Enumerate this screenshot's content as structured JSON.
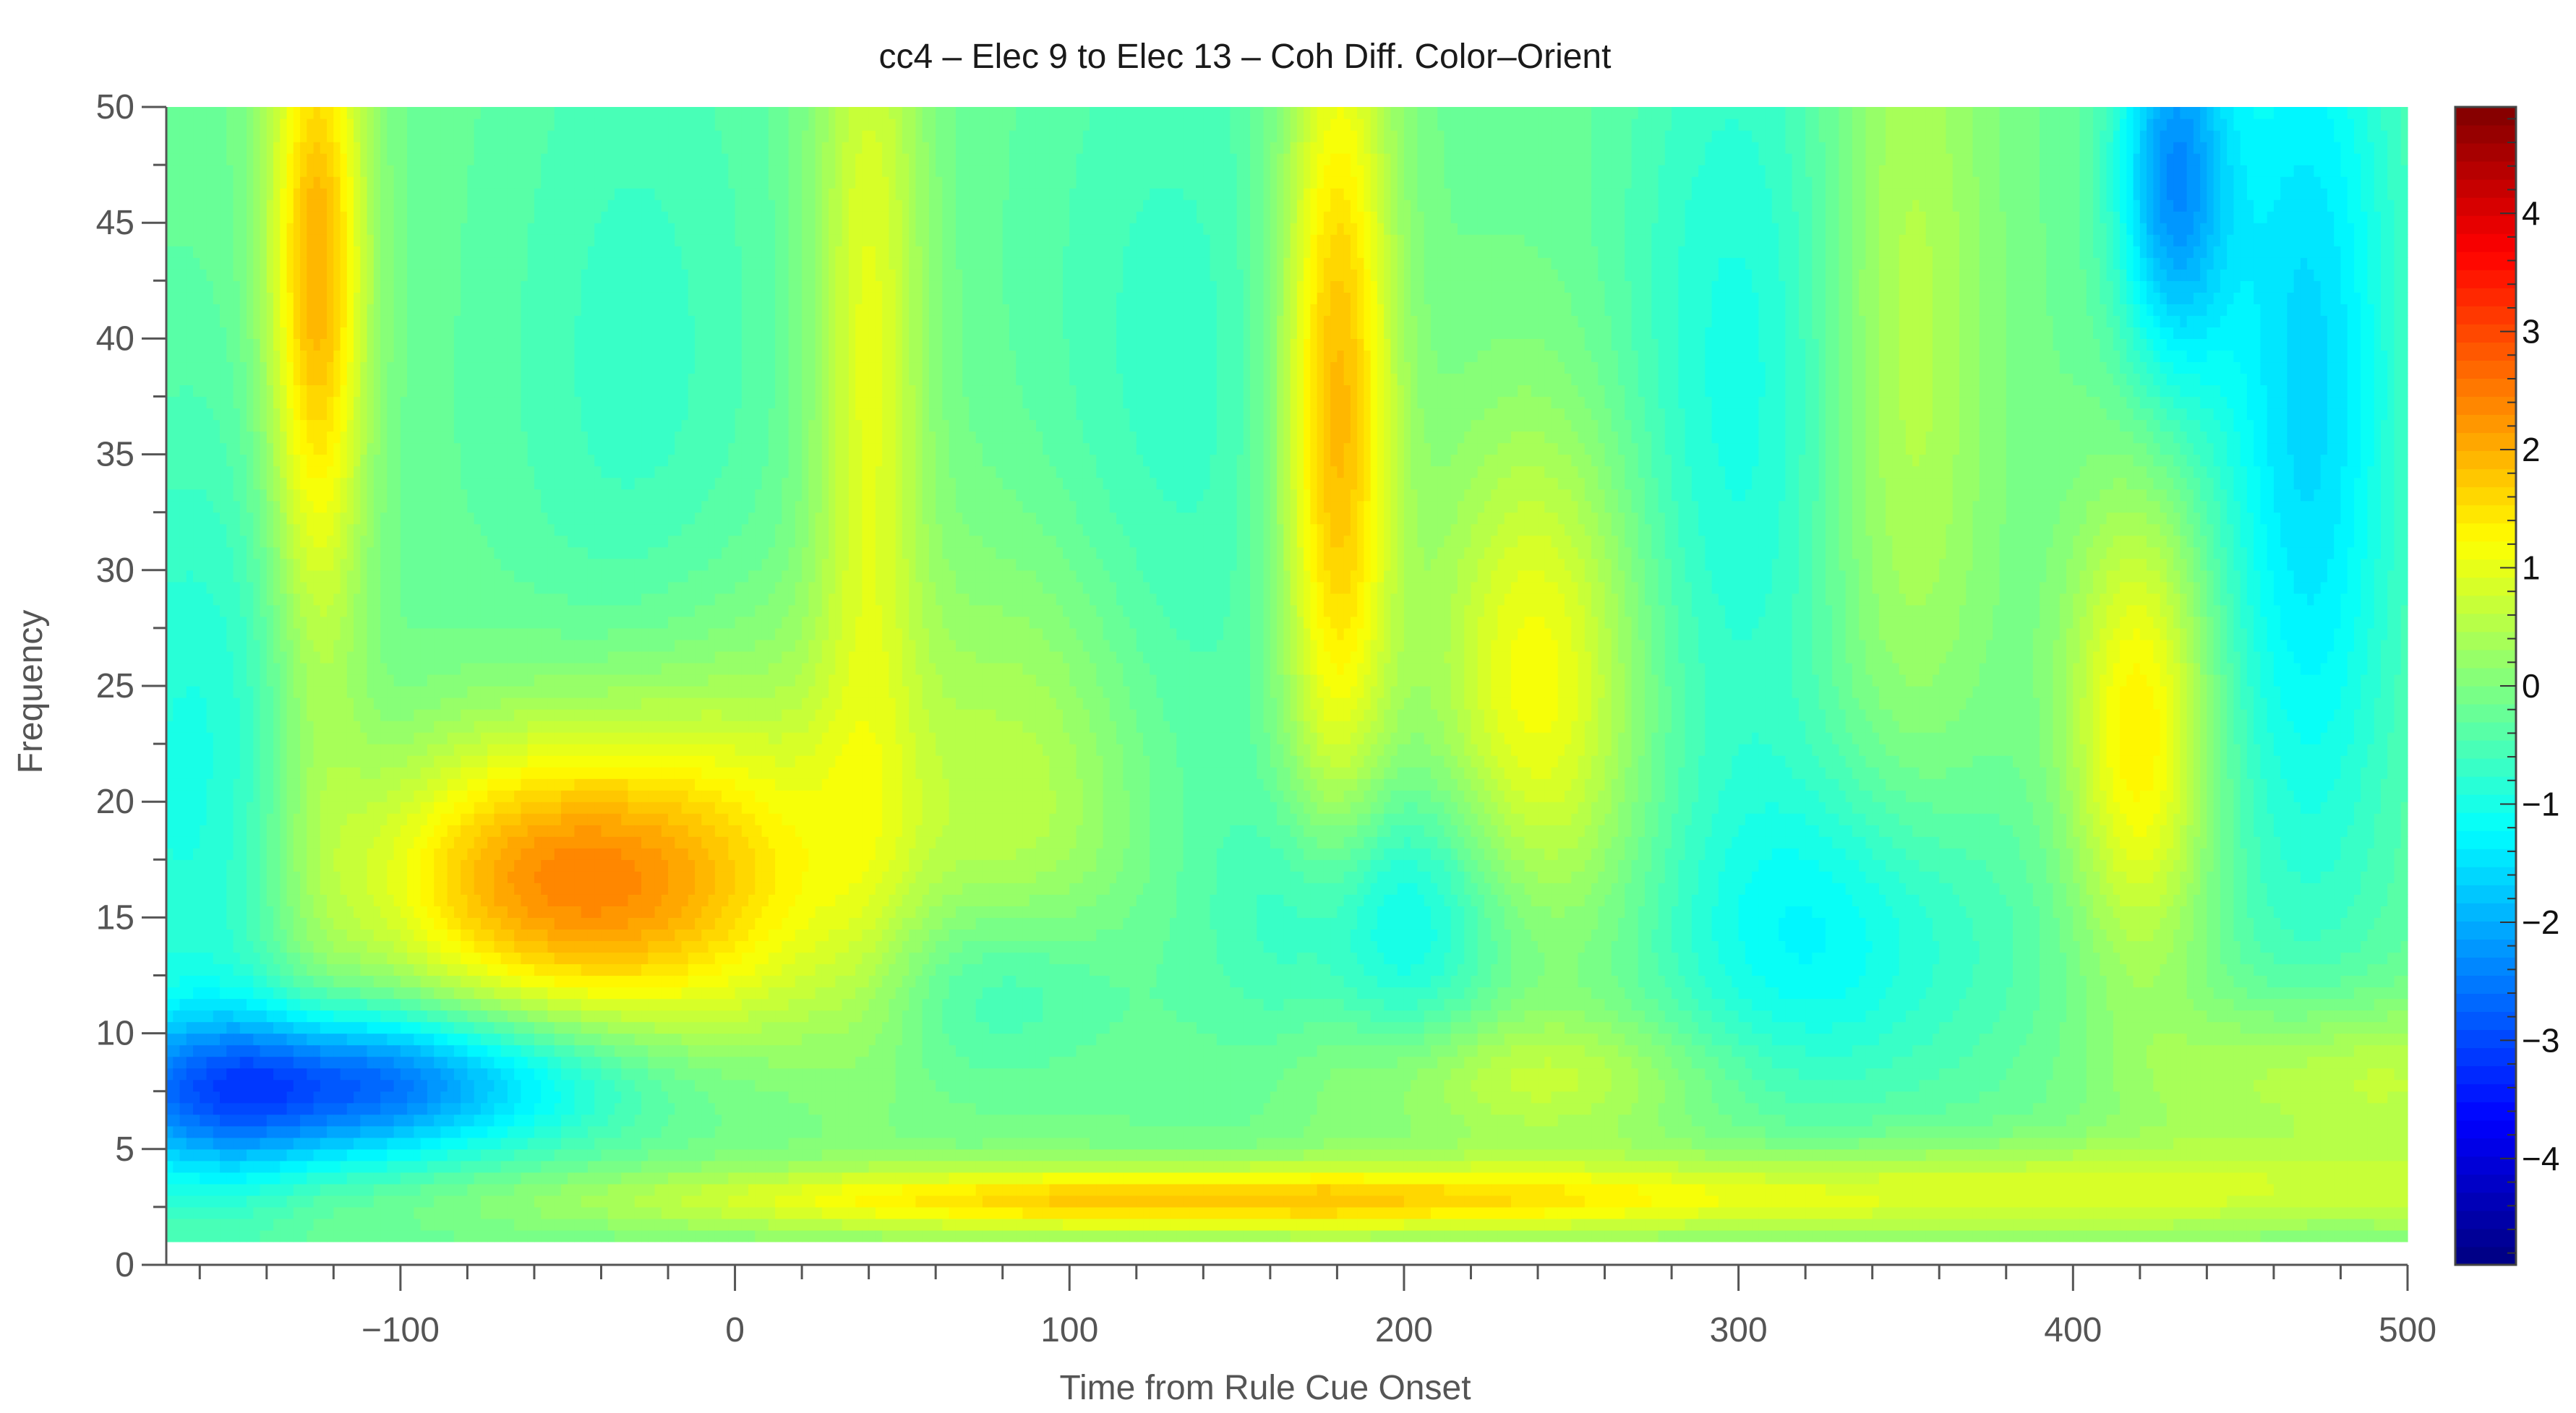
{
  "chart_data": {
    "type": "heatmap",
    "title": "cc4 – Elec 9 to Elec 13 – Coh Diff. Color–Orient",
    "xlabel": "Time from Rule Cue Onset",
    "ylabel": "Frequency",
    "xlim": [
      -170,
      500
    ],
    "ylim": [
      0,
      50
    ],
    "data_ylim": [
      1,
      50
    ],
    "x_ticks": [
      -100,
      0,
      100,
      200,
      300,
      400,
      500
    ],
    "x_tick_labels": [
      "−100",
      "0",
      "100",
      "200",
      "300",
      "400",
      "500"
    ],
    "y_ticks": [
      0,
      5,
      10,
      15,
      20,
      25,
      30,
      35,
      40,
      45,
      50
    ],
    "y_tick_labels": [
      "0",
      "5",
      "10",
      "15",
      "20",
      "25",
      "30",
      "35",
      "40",
      "45",
      "50"
    ],
    "colorbar": {
      "range": [
        -4.9,
        4.9
      ],
      "ticks": [
        -4,
        -3,
        -2,
        -1,
        0,
        1,
        2,
        3,
        4
      ],
      "tick_labels": [
        "−4",
        "−3",
        "−2",
        "−1",
        "0",
        "1",
        "2",
        "3",
        "4"
      ],
      "colormap": "jet",
      "position": "right"
    },
    "grid": false,
    "features": [
      {
        "x": -125,
        "y": 44,
        "sx": 10,
        "sy": 9,
        "v": 1.6
      },
      {
        "x": -125,
        "y": 33,
        "sx": 12,
        "sy": 16,
        "v": 0.8
      },
      {
        "x": -45,
        "y": 16.5,
        "sx": 40,
        "sy": 4.5,
        "v": 1.8
      },
      {
        "x": 0,
        "y": 18,
        "sx": 45,
        "sy": 7,
        "v": 1.0
      },
      {
        "x": -80,
        "y": 17,
        "sx": 35,
        "sy": 4,
        "v": 0.6
      },
      {
        "x": 40,
        "y": 40,
        "sx": 12,
        "sy": 15,
        "v": 1.2
      },
      {
        "x": 90,
        "y": 20,
        "sx": 25,
        "sy": 8,
        "v": 0.7
      },
      {
        "x": 180,
        "y": 37,
        "sx": 12,
        "sy": 13,
        "v": 2.2
      },
      {
        "x": 240,
        "y": 25,
        "sx": 22,
        "sy": 8,
        "v": 1.4
      },
      {
        "x": 240,
        "y": 8,
        "sx": 40,
        "sy": 2,
        "v": 0.8
      },
      {
        "x": 420,
        "y": 23,
        "sx": 15,
        "sy": 7,
        "v": 1.6
      },
      {
        "x": 350,
        "y": 40,
        "sx": 18,
        "sy": 15,
        "v": 0.8
      },
      {
        "x": 480,
        "y": 8,
        "sx": 40,
        "sy": 2.5,
        "v": 1.0
      },
      {
        "x": 130,
        "y": 2.8,
        "sx": 110,
        "sy": 1.0,
        "v": 1.8
      },
      {
        "x": 400,
        "y": 3.2,
        "sx": 150,
        "sy": 1.5,
        "v": 1.0
      },
      {
        "x": -110,
        "y": 8,
        "sx": 55,
        "sy": 2.2,
        "v": -2.2
      },
      {
        "x": -150,
        "y": 6.5,
        "sx": 35,
        "sy": 2.5,
        "v": -1.0
      },
      {
        "x": -160,
        "y": 20,
        "sx": 30,
        "sy": 12,
        "v": -0.8
      },
      {
        "x": 430,
        "y": 47,
        "sx": 12,
        "sy": 6,
        "v": -2.0
      },
      {
        "x": 470,
        "y": 38,
        "sx": 20,
        "sy": 16,
        "v": -1.4
      },
      {
        "x": 195,
        "y": 15,
        "sx": 28,
        "sy": 4,
        "v": -1.1
      },
      {
        "x": 330,
        "y": 14,
        "sx": 35,
        "sy": 5,
        "v": -1.0
      },
      {
        "x": 80,
        "y": 12,
        "sx": 25,
        "sy": 3,
        "v": -0.8
      },
      {
        "x": 300,
        "y": 38,
        "sx": 25,
        "sy": 14,
        "v": -0.8
      },
      {
        "x": 130,
        "y": 38,
        "sx": 30,
        "sy": 14,
        "v": -0.5
      },
      {
        "x": -30,
        "y": 38,
        "sx": 30,
        "sy": 14,
        "v": -0.5
      }
    ]
  }
}
